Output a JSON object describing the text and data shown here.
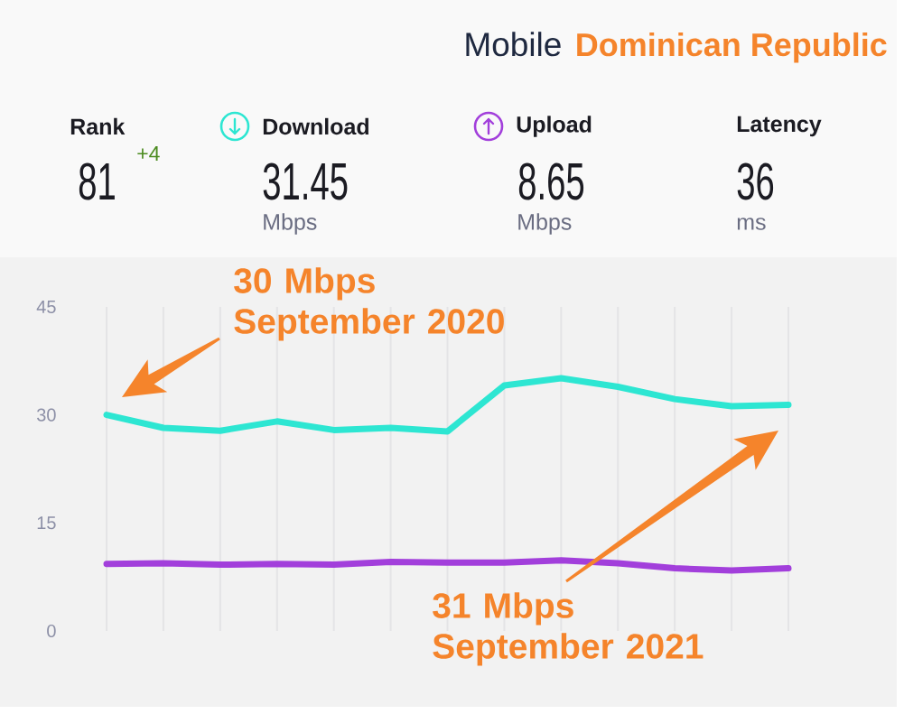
{
  "chart_data": {
    "type": "line",
    "title": "Dominican Republic",
    "subtitle": "Mobile",
    "categories": [
      null,
      null,
      null,
      null,
      null,
      null,
      null,
      null,
      null,
      null,
      null,
      null,
      null
    ],
    "series": [
      {
        "name": "Download",
        "color": "#2de6d2",
        "values": [
          30,
          28.2,
          27.8,
          29.1,
          27.9,
          28.2,
          27.7,
          34.1,
          35.1,
          33.9,
          32.2,
          31.2,
          31.4
        ]
      },
      {
        "name": "Upload",
        "color": "#a23fdb",
        "values": [
          9.3,
          9.4,
          9.2,
          9.3,
          9.2,
          9.6,
          9.5,
          9.5,
          9.8,
          9.4,
          8.7,
          8.4,
          8.7
        ]
      }
    ],
    "ylim": [
      0,
      45
    ],
    "yticks": [
      0,
      15,
      30,
      45
    ],
    "grid": "x",
    "tick_labels": "y",
    "legend": "top",
    "annotations": [
      "Rank",
      "81",
      "+4",
      "31.45",
      "Mbps",
      "8.65",
      "Mbps",
      "Latency",
      "36",
      "ms",
      "30 Mbps September 2020",
      "31 Mbps September 2021"
    ]
  }
}
